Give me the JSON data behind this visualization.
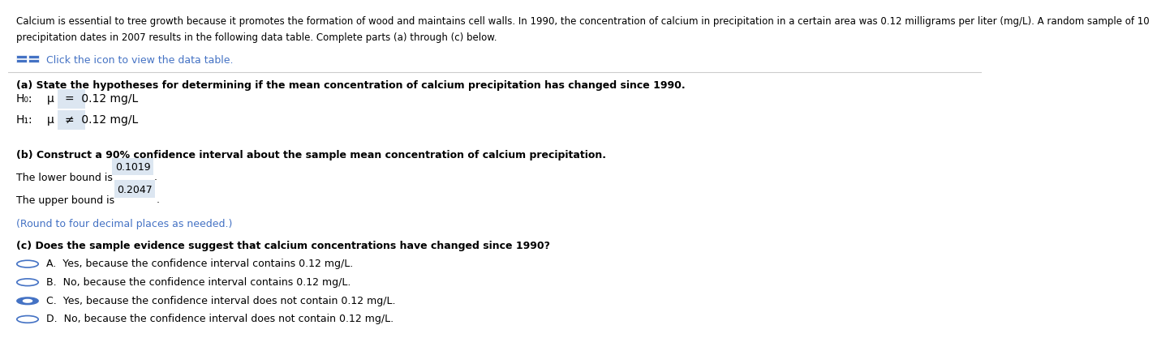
{
  "intro_line1": "Calcium is essential to tree growth because it promotes the formation of wood and maintains cell walls. In 1990, the concentration of calcium in precipitation in a certain area was 0.12 milligrams per liter (mg/L). A random sample of 10",
  "intro_line2": "precipitation dates in 2007 results in the following data table. Complete parts (a) through (c) below.",
  "icon_text": "Click the icon to view the data table.",
  "part_a_header": "(a) State the hypotheses for determining if the mean concentration of calcium precipitation has changed since 1990.",
  "h0_label": "H₀:",
  "h1_label": "H₁:",
  "mu": "μ",
  "h0_eq": "=  0.12 mg/L",
  "h1_eq": "≠  0.12 mg/L",
  "part_b_header": "(b) Construct a 90% confidence interval about the sample mean concentration of calcium precipitation.",
  "lower_bound_text": "The lower bound is ",
  "lower_bound_value": "0.1019",
  "upper_bound_text": "The upper bound is ",
  "upper_bound_value": "0.2047",
  "round_note": "(Round to four decimal places as needed.)",
  "part_c_header": "(c) Does the sample evidence suggest that calcium concentrations have changed since 1990?",
  "options": [
    "A.  Yes, because the confidence interval contains 0.12 mg/L.",
    "B.  No, because the confidence interval contains 0.12 mg/L.",
    "C.  Yes, because the confidence interval does not contain 0.12 mg/L.",
    "D.  No, because the confidence interval does not contain 0.12 mg/L."
  ],
  "selected_option": 2,
  "bg_color": "#ffffff",
  "text_color": "#000000",
  "blue_color": "#4472C4",
  "highlight_color": "#dce6f1",
  "round_note_color": "#4472C4",
  "separator_color": "#cccccc",
  "font_size_intro": 8.5,
  "font_size_body": 9.0
}
